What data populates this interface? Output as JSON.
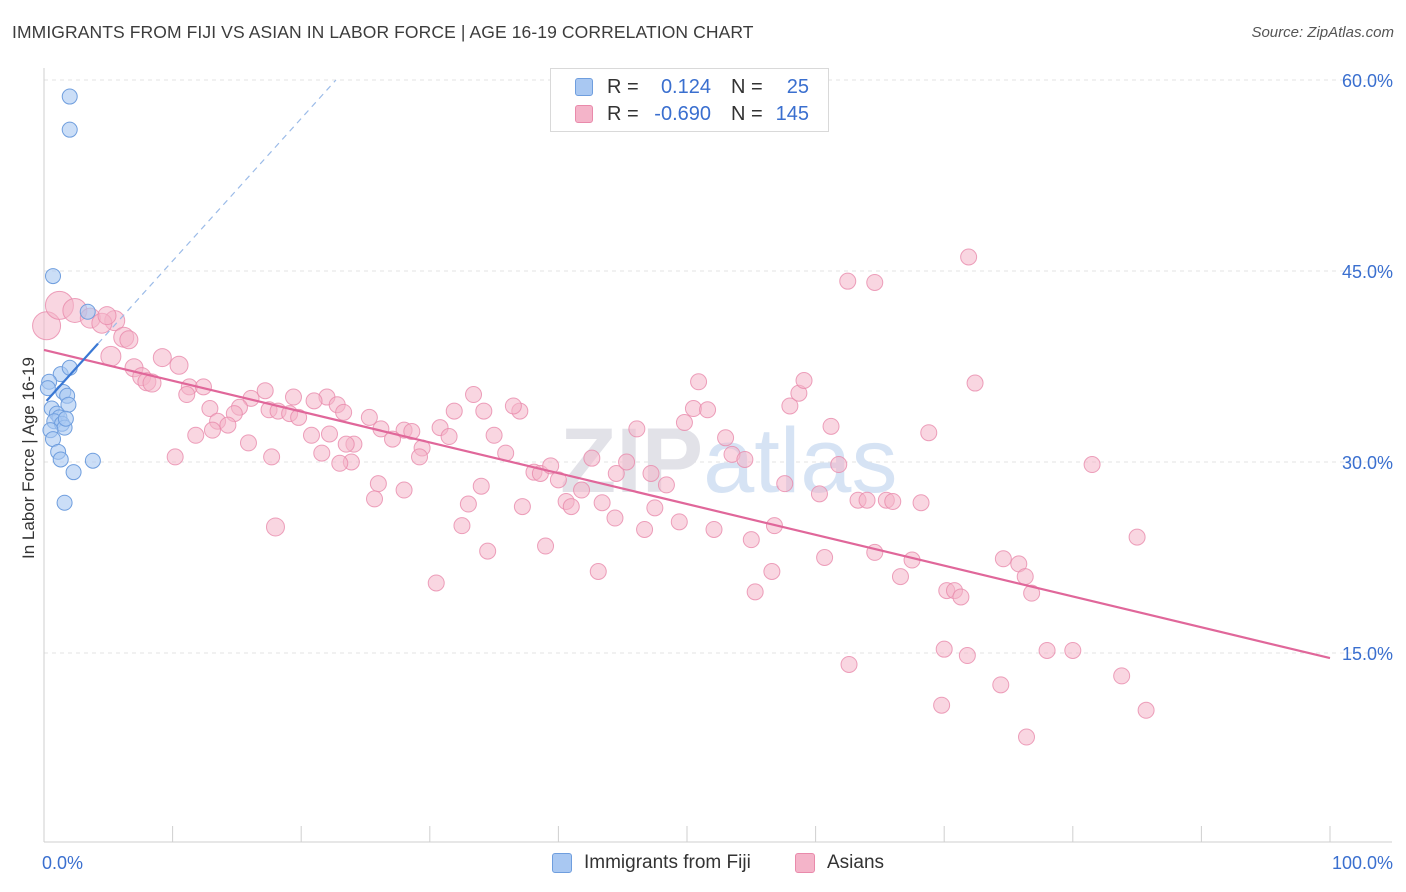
{
  "title": "IMMIGRANTS FROM FIJI VS ASIAN IN LABOR FORCE | AGE 16-19 CORRELATION CHART",
  "source": "Source: ZipAtlas.com",
  "watermark": "ZIPatlas",
  "legend": {
    "r_label": "R =",
    "n_label": "N =",
    "rows": [
      {
        "r": "0.124",
        "n": "25"
      },
      {
        "r": "-0.690",
        "n": "145"
      }
    ]
  },
  "colors": {
    "fiji_fill": "#a9c8f2",
    "fiji_stroke": "#6f9ede",
    "fiji_line": "#3a78d4",
    "asian_fill": "#f4b4c9",
    "asian_stroke": "#e98aab",
    "asian_line": "#e0679a",
    "axis_text": "#3a6fcf"
  },
  "chart_data": {
    "type": "scatter",
    "ylabel": "In Labor Force | Age 16-19",
    "xlabel": "",
    "xlim": [
      0,
      100
    ],
    "ylim": [
      0,
      63
    ],
    "x_tick_labels": [
      "0.0%",
      "100.0%"
    ],
    "y_ticks": [
      15,
      30,
      45,
      60
    ],
    "y_tick_labels": [
      "15.0%",
      "30.0%",
      "45.0%",
      "60.0%"
    ],
    "grid": true,
    "legend_position": "top-center",
    "series": [
      {
        "name": "Immigrants from Fiji",
        "r": 0.124,
        "n": 25,
        "trend": {
          "x": [
            0.2,
            4.2
          ],
          "y": [
            34.8,
            39.3
          ]
        },
        "trend_extension": {
          "x": [
            4.2,
            22.7
          ],
          "y": [
            39.3,
            60.0
          ]
        },
        "points": [
          [
            2.0,
            58.7
          ],
          [
            2.0,
            56.1
          ],
          [
            0.7,
            44.6
          ],
          [
            3.4,
            41.8
          ],
          [
            1.3,
            36.9
          ],
          [
            2.0,
            37.4
          ],
          [
            0.4,
            36.3
          ],
          [
            1.5,
            35.5
          ],
          [
            1.8,
            35.2
          ],
          [
            1.9,
            34.5
          ],
          [
            0.6,
            34.2
          ],
          [
            1.0,
            33.8
          ],
          [
            1.2,
            33.5
          ],
          [
            0.8,
            33.2
          ],
          [
            1.4,
            33.0
          ],
          [
            1.6,
            32.7
          ],
          [
            0.5,
            32.5
          ],
          [
            0.7,
            31.8
          ],
          [
            1.1,
            30.8
          ],
          [
            1.3,
            30.2
          ],
          [
            3.8,
            30.1
          ],
          [
            2.3,
            29.2
          ],
          [
            1.6,
            26.8
          ],
          [
            0.3,
            35.8
          ],
          [
            1.7,
            33.4
          ]
        ]
      },
      {
        "name": "Asians",
        "r": -0.69,
        "n": 145,
        "trend": {
          "x": [
            0,
            100
          ],
          "y": [
            38.8,
            14.6
          ]
        },
        "points": [
          [
            0.2,
            40.7,
            14
          ],
          [
            1.2,
            42.3,
            14
          ],
          [
            2.4,
            41.9,
            12
          ],
          [
            3.6,
            41.3,
            10
          ],
          [
            5.5,
            41.1,
            10
          ],
          [
            4.5,
            40.9,
            10
          ],
          [
            6.2,
            39.8,
            10
          ],
          [
            6.6,
            39.6,
            9
          ],
          [
            4.9,
            41.5,
            9
          ],
          [
            5.2,
            38.3,
            10
          ],
          [
            7.0,
            37.4,
            9
          ],
          [
            9.2,
            38.2,
            9
          ],
          [
            10.5,
            37.6,
            9
          ],
          [
            7.6,
            36.7,
            9
          ],
          [
            8.0,
            36.3,
            9
          ],
          [
            8.4,
            36.2,
            9
          ],
          [
            11.3,
            35.9,
            8
          ],
          [
            12.4,
            35.9,
            8
          ],
          [
            11.1,
            35.3,
            8
          ],
          [
            17.2,
            35.6,
            8
          ],
          [
            16.1,
            35.0,
            8
          ],
          [
            19.4,
            35.1,
            8
          ],
          [
            22.0,
            35.1,
            8
          ],
          [
            21.0,
            34.8,
            8
          ],
          [
            22.8,
            34.5,
            8
          ],
          [
            15.2,
            34.3,
            8
          ],
          [
            12.9,
            34.2,
            8
          ],
          [
            17.5,
            34.1,
            8
          ],
          [
            18.2,
            34.0,
            8
          ],
          [
            14.8,
            33.8,
            8
          ],
          [
            19.1,
            33.8,
            8
          ],
          [
            23.3,
            33.9,
            8
          ],
          [
            19.8,
            33.5,
            8
          ],
          [
            25.3,
            33.5,
            8
          ],
          [
            13.5,
            33.2,
            8
          ],
          [
            14.3,
            32.9,
            8
          ],
          [
            26.2,
            32.6,
            8
          ],
          [
            28.0,
            32.5,
            8
          ],
          [
            28.6,
            32.4,
            8
          ],
          [
            11.8,
            32.1,
            8
          ],
          [
            22.2,
            32.2,
            8
          ],
          [
            13.1,
            32.5,
            8
          ],
          [
            20.8,
            32.1,
            8
          ],
          [
            27.1,
            31.8,
            8
          ],
          [
            24.1,
            31.4,
            8
          ],
          [
            15.9,
            31.5,
            8
          ],
          [
            23.5,
            31.4,
            8
          ],
          [
            29.4,
            31.1,
            8
          ],
          [
            21.6,
            30.7,
            8
          ],
          [
            17.7,
            30.4,
            8
          ],
          [
            29.2,
            30.4,
            8
          ],
          [
            23.9,
            30.0,
            8
          ],
          [
            23.0,
            29.9,
            8
          ],
          [
            30.8,
            32.7,
            8
          ],
          [
            31.9,
            34.0,
            8
          ],
          [
            31.5,
            32.0,
            8
          ],
          [
            33.4,
            35.3,
            8
          ],
          [
            34.2,
            34.0,
            8
          ],
          [
            35.0,
            32.1,
            8
          ],
          [
            35.9,
            30.7,
            8
          ],
          [
            37.0,
            34.0,
            8
          ],
          [
            36.5,
            34.4,
            8
          ],
          [
            38.1,
            29.2,
            8
          ],
          [
            38.6,
            29.1,
            8
          ],
          [
            39.4,
            29.7,
            8
          ],
          [
            40.0,
            28.6,
            8
          ],
          [
            40.6,
            26.9,
            8
          ],
          [
            41.8,
            27.8,
            8
          ],
          [
            42.6,
            30.3,
            8
          ],
          [
            43.4,
            26.8,
            8
          ],
          [
            44.4,
            25.6,
            8
          ],
          [
            43.1,
            21.4,
            8
          ],
          [
            44.5,
            29.1,
            8
          ],
          [
            45.3,
            30.0,
            8
          ],
          [
            46.1,
            32.6,
            8
          ],
          [
            47.5,
            26.4,
            8
          ],
          [
            46.7,
            24.7,
            8
          ],
          [
            47.2,
            29.1,
            8
          ],
          [
            48.4,
            28.2,
            8
          ],
          [
            49.4,
            25.3,
            8
          ],
          [
            49.8,
            33.1,
            8
          ],
          [
            50.5,
            34.2,
            8
          ],
          [
            50.9,
            36.3,
            8
          ],
          [
            51.6,
            34.1,
            8
          ],
          [
            52.1,
            24.7,
            8
          ],
          [
            53.0,
            31.9,
            8
          ],
          [
            53.5,
            30.6,
            8
          ],
          [
            54.5,
            30.2,
            8
          ],
          [
            55.0,
            23.9,
            8
          ],
          [
            55.3,
            19.8,
            8
          ],
          [
            56.6,
            21.4,
            8
          ],
          [
            56.8,
            25.0,
            8
          ],
          [
            57.6,
            28.3,
            8
          ],
          [
            58.0,
            34.4,
            8
          ],
          [
            58.7,
            35.4,
            8
          ],
          [
            59.1,
            36.4,
            8
          ],
          [
            60.3,
            27.5,
            8
          ],
          [
            60.7,
            22.5,
            8
          ],
          [
            61.2,
            32.8,
            8
          ],
          [
            61.8,
            29.8,
            8
          ],
          [
            62.6,
            14.1,
            8
          ],
          [
            63.3,
            27.0,
            8
          ],
          [
            64.0,
            27.0,
            8
          ],
          [
            64.6,
            22.9,
            8
          ],
          [
            65.5,
            27.0,
            8
          ],
          [
            66.0,
            26.9,
            8
          ],
          [
            66.6,
            21.0,
            8
          ],
          [
            67.5,
            22.3,
            8
          ],
          [
            68.2,
            26.8,
            8
          ],
          [
            68.8,
            32.3,
            8
          ],
          [
            70.2,
            19.9,
            8
          ],
          [
            70.8,
            19.9,
            8
          ],
          [
            71.3,
            19.4,
            8
          ],
          [
            71.9,
            46.1,
            8
          ],
          [
            72.4,
            36.2,
            8
          ],
          [
            70.0,
            15.3,
            8
          ],
          [
            71.8,
            14.8,
            8
          ],
          [
            74.6,
            22.4,
            8
          ],
          [
            75.8,
            22.0,
            8
          ],
          [
            76.3,
            21.0,
            8
          ],
          [
            76.8,
            19.7,
            8
          ],
          [
            78.0,
            15.2,
            8
          ],
          [
            80.0,
            15.2,
            8
          ],
          [
            81.5,
            29.8,
            8
          ],
          [
            83.8,
            13.2,
            8
          ],
          [
            85.0,
            24.1,
            8
          ],
          [
            62.5,
            44.2,
            8
          ],
          [
            64.6,
            44.1,
            8
          ],
          [
            69.8,
            10.9,
            8
          ],
          [
            74.4,
            12.5,
            8
          ],
          [
            76.4,
            8.4,
            8
          ],
          [
            85.7,
            10.5,
            8
          ],
          [
            41.0,
            26.5,
            8
          ],
          [
            26.0,
            28.3,
            8
          ],
          [
            25.7,
            27.1,
            8
          ],
          [
            33.0,
            26.7,
            8
          ],
          [
            34.0,
            28.1,
            8
          ],
          [
            37.2,
            26.5,
            8
          ],
          [
            39.0,
            23.4,
            8
          ],
          [
            30.5,
            20.5,
            8
          ],
          [
            32.5,
            25.0,
            8
          ],
          [
            34.5,
            23.0,
            8
          ],
          [
            28.0,
            27.8,
            8
          ],
          [
            18.0,
            24.9,
            9
          ],
          [
            10.2,
            30.4,
            8
          ]
        ]
      }
    ]
  }
}
